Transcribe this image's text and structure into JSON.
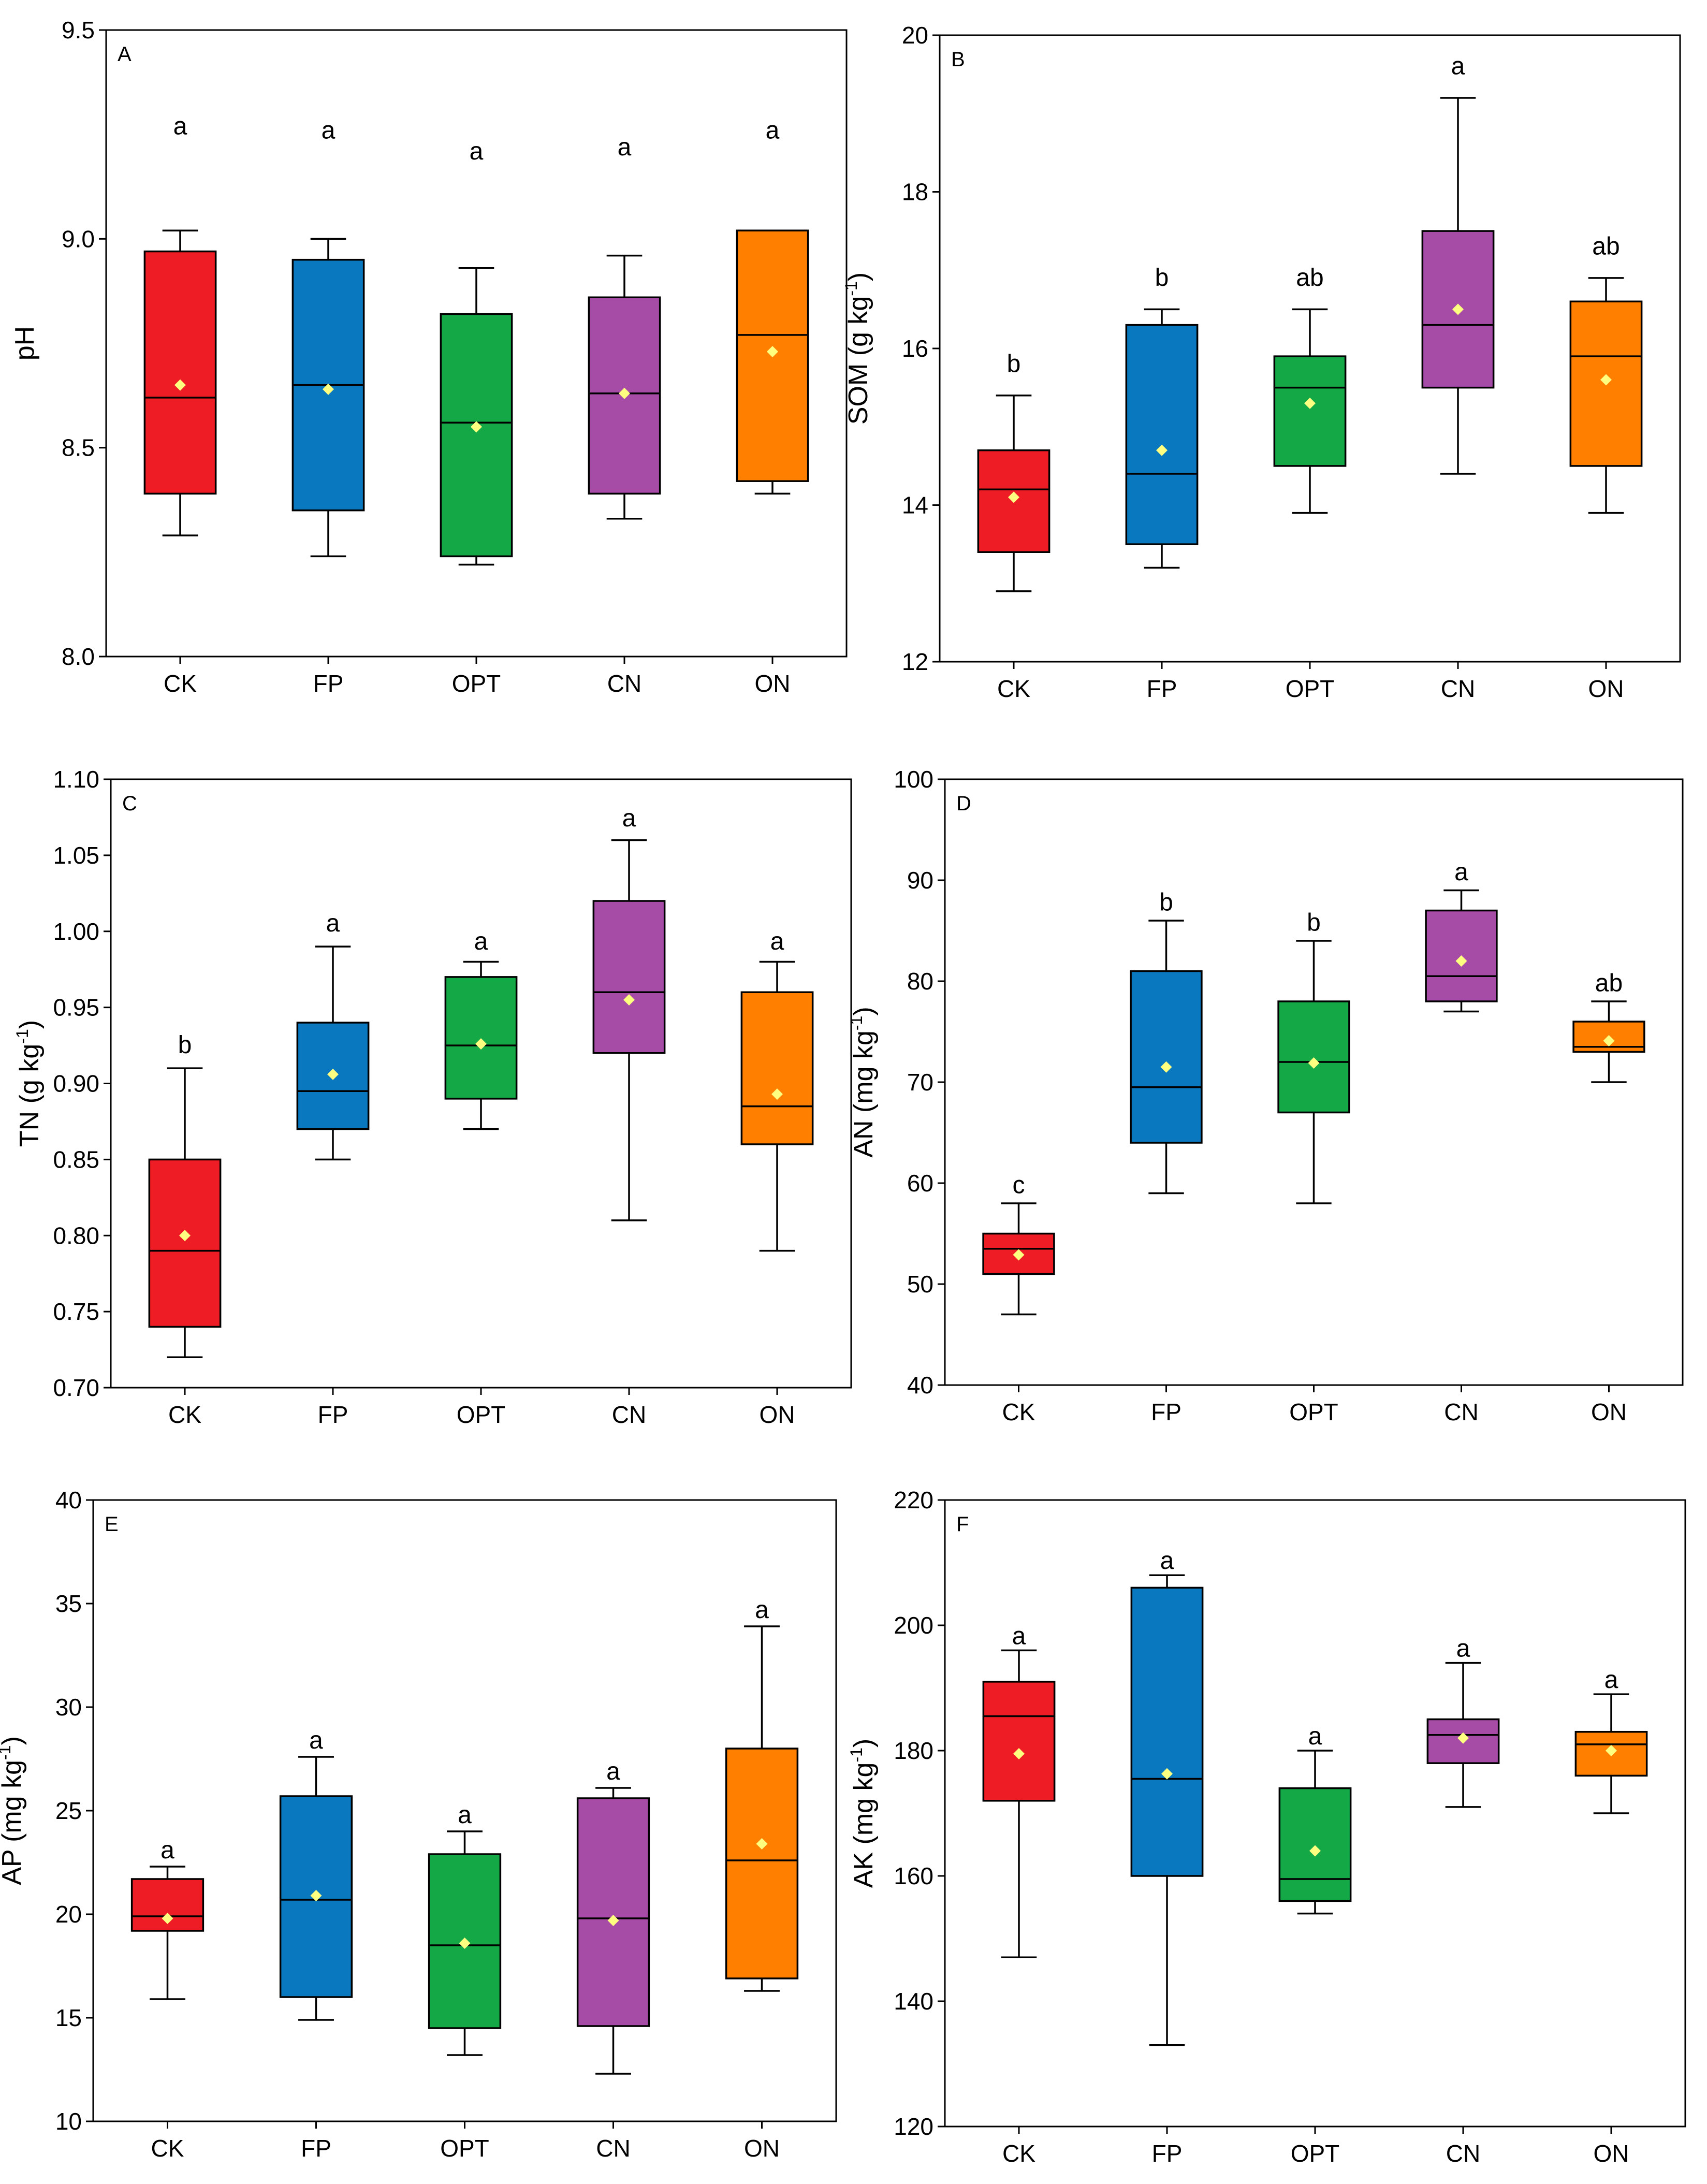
{
  "colors": {
    "CK": "#ee1c25",
    "FP": "#0a78be",
    "OPT": "#14a847",
    "CN": "#a64ca6",
    "ON": "#ff8000",
    "mean_marker": "#ffff80"
  },
  "chart_data": [
    {
      "type": "box",
      "panel": "A",
      "ylabel": "pH",
      "ylabel_unit": "",
      "ylim": [
        8.0,
        9.5
      ],
      "yticks": [
        "8.0",
        "8.5",
        "9.0",
        "9.5"
      ],
      "categories": [
        "CK",
        "FP",
        "OPT",
        "CN",
        "ON"
      ],
      "boxes": [
        {
          "min": 8.29,
          "q1": 8.39,
          "median": 8.62,
          "q3": 8.97,
          "max": 9.02,
          "mean": 8.65,
          "sig": "a",
          "sig_y": 9.25
        },
        {
          "min": 8.24,
          "q1": 8.35,
          "median": 8.65,
          "q3": 8.95,
          "max": 9.0,
          "mean": 8.64,
          "sig": "a",
          "sig_y": 9.24
        },
        {
          "min": 8.22,
          "q1": 8.24,
          "median": 8.56,
          "q3": 8.82,
          "max": 8.93,
          "mean": 8.55,
          "sig": "a",
          "sig_y": 9.19
        },
        {
          "min": 8.33,
          "q1": 8.39,
          "median": 8.63,
          "q3": 8.86,
          "max": 8.96,
          "mean": 8.63,
          "sig": "a",
          "sig_y": 9.2
        },
        {
          "min": 8.39,
          "q1": 8.42,
          "median": 8.77,
          "q3": 9.02,
          "max": 9.02,
          "mean": 8.73,
          "sig": "a",
          "sig_y": 9.24
        }
      ]
    },
    {
      "type": "box",
      "panel": "B",
      "ylabel": "SOM (g kg",
      "ylabel_unit": "-1",
      "ylim": [
        12,
        20
      ],
      "yticks": [
        "12",
        "14",
        "16",
        "18",
        "20"
      ],
      "categories": [
        "CK",
        "FP",
        "OPT",
        "CN",
        "ON"
      ],
      "boxes": [
        {
          "min": 12.9,
          "q1": 13.4,
          "median": 14.2,
          "q3": 14.7,
          "max": 15.4,
          "mean": 14.1,
          "sig": "b",
          "sig_y": 15.7
        },
        {
          "min": 13.2,
          "q1": 13.5,
          "median": 14.4,
          "q3": 16.3,
          "max": 16.5,
          "mean": 14.7,
          "sig": "b",
          "sig_y": 16.8
        },
        {
          "min": 13.9,
          "q1": 14.5,
          "median": 15.5,
          "q3": 15.9,
          "max": 16.5,
          "mean": 15.3,
          "sig": "ab",
          "sig_y": 16.8
        },
        {
          "min": 14.4,
          "q1": 15.5,
          "median": 16.3,
          "q3": 17.5,
          "max": 19.2,
          "mean": 16.5,
          "sig": "a",
          "sig_y": 19.5
        },
        {
          "min": 13.9,
          "q1": 14.5,
          "median": 15.9,
          "q3": 16.6,
          "max": 16.9,
          "mean": 15.6,
          "sig": "ab",
          "sig_y": 17.2
        }
      ]
    },
    {
      "type": "box",
      "panel": "C",
      "ylabel": "TN (g kg",
      "ylabel_unit": "-1",
      "ylim": [
        0.7,
        1.1
      ],
      "yticks": [
        "0.70",
        "0.75",
        "0.80",
        "0.85",
        "0.90",
        "0.95",
        "1.00",
        "1.05",
        "1.10"
      ],
      "categories": [
        "CK",
        "FP",
        "OPT",
        "CN",
        "ON"
      ],
      "boxes": [
        {
          "min": 0.72,
          "q1": 0.74,
          "median": 0.79,
          "q3": 0.85,
          "max": 0.91,
          "mean": 0.8,
          "sig": "b",
          "sig_y": 0.92
        },
        {
          "min": 0.85,
          "q1": 0.87,
          "median": 0.895,
          "q3": 0.94,
          "max": 0.99,
          "mean": 0.906,
          "sig": "a",
          "sig_y": 1.0
        },
        {
          "min": 0.87,
          "q1": 0.89,
          "median": 0.925,
          "q3": 0.97,
          "max": 0.98,
          "mean": 0.926,
          "sig": "a",
          "sig_y": 0.988
        },
        {
          "min": 0.81,
          "q1": 0.92,
          "median": 0.96,
          "q3": 1.02,
          "max": 1.06,
          "mean": 0.955,
          "sig": "a",
          "sig_y": 1.069
        },
        {
          "min": 0.79,
          "q1": 0.86,
          "median": 0.885,
          "q3": 0.96,
          "max": 0.98,
          "mean": 0.893,
          "sig": "a",
          "sig_y": 0.988
        }
      ]
    },
    {
      "type": "box",
      "panel": "D",
      "ylabel": "AN (mg kg",
      "ylabel_unit": "-1",
      "ylim": [
        40,
        100
      ],
      "yticks": [
        "40",
        "50",
        "60",
        "70",
        "80",
        "90",
        "100"
      ],
      "categories": [
        "CK",
        "FP",
        "OPT",
        "CN",
        "ON"
      ],
      "boxes": [
        {
          "min": 47,
          "q1": 51,
          "median": 53.5,
          "q3": 55,
          "max": 58,
          "mean": 52.9,
          "sig": "c",
          "sig_y": 59
        },
        {
          "min": 59,
          "q1": 64,
          "median": 69.5,
          "q3": 81,
          "max": 86,
          "mean": 71.5,
          "sig": "b",
          "sig_y": 87
        },
        {
          "min": 58,
          "q1": 67,
          "median": 72,
          "q3": 78,
          "max": 84,
          "mean": 71.9,
          "sig": "b",
          "sig_y": 85
        },
        {
          "min": 77,
          "q1": 78,
          "median": 80.5,
          "q3": 87,
          "max": 89,
          "mean": 82,
          "sig": "a",
          "sig_y": 90
        },
        {
          "min": 70,
          "q1": 73,
          "median": 73.5,
          "q3": 76,
          "max": 78,
          "mean": 74.1,
          "sig": "ab",
          "sig_y": 79
        }
      ]
    },
    {
      "type": "box",
      "panel": "E",
      "ylabel": "AP (mg kg",
      "ylabel_unit": "-1",
      "ylim": [
        10,
        40
      ],
      "yticks": [
        "10",
        "15",
        "20",
        "25",
        "30",
        "35",
        "40"
      ],
      "categories": [
        "CK",
        "FP",
        "OPT",
        "CN",
        "ON"
      ],
      "boxes": [
        {
          "min": 15.9,
          "q1": 19.2,
          "median": 19.9,
          "q3": 21.7,
          "max": 22.3,
          "mean": 19.8,
          "sig": "a",
          "sig_y": 22.7
        },
        {
          "min": 14.9,
          "q1": 16.0,
          "median": 20.7,
          "q3": 25.7,
          "max": 27.6,
          "mean": 20.9,
          "sig": "a",
          "sig_y": 28.0
        },
        {
          "min": 13.2,
          "q1": 14.5,
          "median": 18.5,
          "q3": 22.9,
          "max": 24.0,
          "mean": 18.6,
          "sig": "a",
          "sig_y": 24.4
        },
        {
          "min": 12.3,
          "q1": 14.6,
          "median": 19.8,
          "q3": 25.6,
          "max": 26.1,
          "mean": 19.7,
          "sig": "a",
          "sig_y": 26.5
        },
        {
          "min": 16.3,
          "q1": 16.9,
          "median": 22.6,
          "q3": 28.0,
          "max": 33.9,
          "mean": 23.4,
          "sig": "a",
          "sig_y": 34.3
        }
      ]
    },
    {
      "type": "box",
      "panel": "F",
      "ylabel": "AK (mg kg",
      "ylabel_unit": "-1",
      "ylim": [
        120,
        220
      ],
      "yticks": [
        "120",
        "140",
        "160",
        "180",
        "200",
        "220"
      ],
      "categories": [
        "CK",
        "FP",
        "OPT",
        "CN",
        "ON"
      ],
      "boxes": [
        {
          "min": 147,
          "q1": 172,
          "median": 185.5,
          "q3": 191,
          "max": 196,
          "mean": 179.5,
          "sig": "a",
          "sig_y": 197
        },
        {
          "min": 133,
          "q1": 160,
          "median": 175.5,
          "q3": 206,
          "max": 208,
          "mean": 176.3,
          "sig": "a",
          "sig_y": 209
        },
        {
          "min": 154,
          "q1": 156,
          "median": 159.5,
          "q3": 174,
          "max": 180,
          "mean": 164,
          "sig": "a",
          "sig_y": 181
        },
        {
          "min": 171,
          "q1": 178,
          "median": 182.5,
          "q3": 185,
          "max": 194,
          "mean": 182,
          "sig": "a",
          "sig_y": 195
        },
        {
          "min": 170,
          "q1": 176,
          "median": 181,
          "q3": 183,
          "max": 189,
          "mean": 180,
          "sig": "a",
          "sig_y": 190
        }
      ]
    }
  ]
}
